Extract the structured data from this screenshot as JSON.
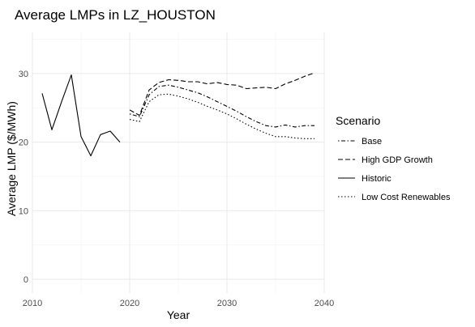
{
  "chart_data": {
    "type": "line",
    "title": "Average LMPs in LZ_HOUSTON",
    "xlabel": "Year",
    "ylabel": "Average LMP ($/MWh)",
    "xlim": [
      2010,
      2040
    ],
    "ylim": [
      -2,
      36
    ],
    "x_ticks": [
      2010,
      2020,
      2030,
      2040
    ],
    "y_ticks": [
      0,
      10,
      20,
      30
    ],
    "grid": true,
    "legend": {
      "title": "Scenario",
      "position": "right"
    },
    "series": [
      {
        "name": "Base",
        "line_style": "dashdot",
        "x": [
          2020,
          2021,
          2022,
          2023,
          2024,
          2025,
          2026,
          2027,
          2028,
          2029,
          2030,
          2031,
          2032,
          2033,
          2034,
          2035,
          2036,
          2037,
          2038,
          2039
        ],
        "y": [
          24.1,
          23.7,
          26.9,
          28.1,
          28.3,
          28.0,
          27.6,
          27.2,
          26.6,
          25.9,
          25.2,
          24.5,
          23.7,
          23.0,
          22.4,
          22.2,
          22.5,
          22.2,
          22.4,
          22.4
        ]
      },
      {
        "name": "High GDP Growth",
        "line_style": "dashed",
        "x": [
          2020,
          2021,
          2022,
          2023,
          2024,
          2025,
          2026,
          2027,
          2028,
          2029,
          2030,
          2031,
          2032,
          2033,
          2034,
          2035,
          2036,
          2037,
          2038,
          2039
        ],
        "y": [
          24.7,
          23.9,
          27.6,
          28.7,
          29.1,
          29.0,
          28.8,
          28.8,
          28.5,
          28.7,
          28.4,
          28.3,
          27.8,
          27.9,
          28.0,
          27.8,
          28.5,
          29.0,
          29.6,
          30.1
        ]
      },
      {
        "name": "Historic",
        "line_style": "solid",
        "x": [
          2011,
          2012,
          2013,
          2014,
          2015,
          2016,
          2017,
          2018,
          2019
        ],
        "y": [
          27.1,
          21.8,
          25.9,
          29.8,
          20.8,
          18.0,
          21.1,
          21.6,
          20.0
        ]
      },
      {
        "name": "Low Cost Renewables",
        "line_style": "dotted",
        "x": [
          2020,
          2021,
          2022,
          2023,
          2024,
          2025,
          2026,
          2027,
          2028,
          2029,
          2030,
          2031,
          2032,
          2033,
          2034,
          2035,
          2036,
          2037,
          2038,
          2039
        ],
        "y": [
          23.3,
          23.0,
          25.9,
          26.9,
          27.0,
          26.7,
          26.3,
          25.8,
          25.2,
          24.7,
          24.1,
          23.4,
          22.6,
          21.9,
          21.3,
          20.8,
          20.8,
          20.6,
          20.5,
          20.5
        ]
      }
    ]
  }
}
